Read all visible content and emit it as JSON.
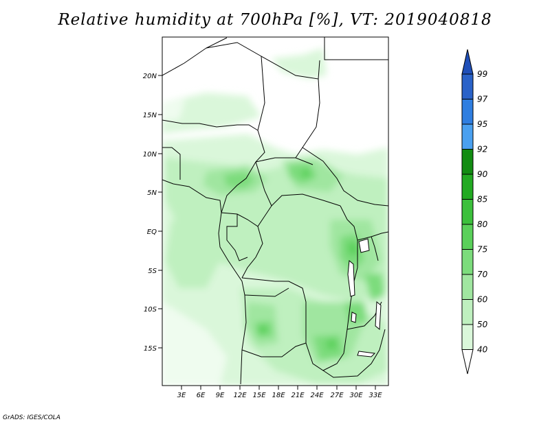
{
  "title": "Relative humidity at 700hPa [%], VT: 2019040818",
  "credit": "GrADS: IGES/COLA",
  "map": {
    "lat_labels": [
      "20N",
      "15N",
      "10N",
      "5N",
      "EQ",
      "5S",
      "10S",
      "15S"
    ],
    "lon_labels": [
      "3E",
      "6E",
      "9E",
      "12E",
      "15E",
      "18E",
      "21E",
      "24E",
      "27E",
      "30E",
      "33E"
    ]
  },
  "colorbar": {
    "levels": [
      "99",
      "97",
      "95",
      "92",
      "90",
      "85",
      "80",
      "75",
      "70",
      "60",
      "50",
      "40"
    ],
    "colors": [
      "#2a62c8",
      "#2f7ee0",
      "#4aa0f0",
      "#128c12",
      "#22aa22",
      "#3cc03c",
      "#5ad05a",
      "#7cdc7c",
      "#a0e6a0",
      "#bff0bf",
      "#daf7da",
      "#effcef"
    ],
    "top_color": "#1f4fb8",
    "bottom_color": "#ffffff"
  }
}
